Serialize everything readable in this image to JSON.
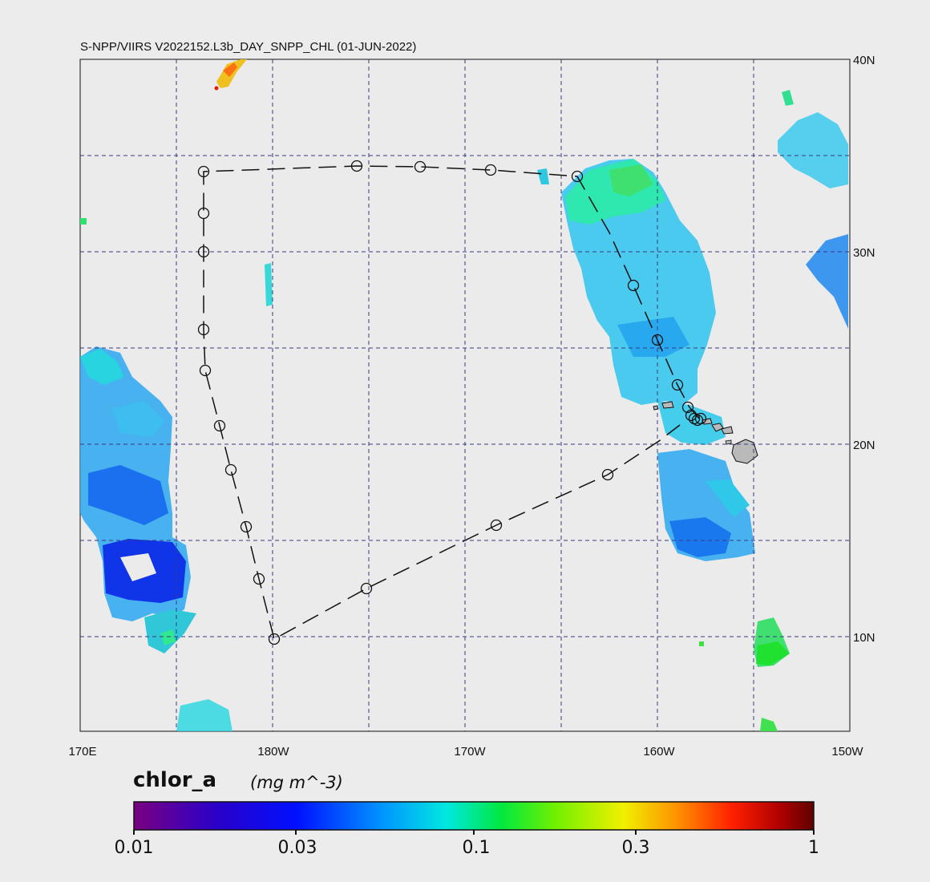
{
  "title": "S-NPP/VIIRS V2022152.L3b_DAY_SNPP_CHL (01-JUN-2022)",
  "map": {
    "lon_labels": [
      "170E",
      "180W",
      "170W",
      "160W",
      "150W"
    ],
    "lat_labels": [
      "40N",
      "30N",
      "20N",
      "10N"
    ],
    "background_color": "#ebebeb",
    "grid_color": "#3a3a80",
    "track_style": "dashed black line with circle markers",
    "land_color": "#b9b9b9"
  },
  "colorbar": {
    "variable": "chlor_a",
    "units": "(mg m^-3)",
    "tick_labels": [
      "0.01",
      "0.03",
      "0.1",
      "0.3",
      "1"
    ],
    "scale": "log",
    "range": [
      0.01,
      1
    ],
    "colors": [
      "#7a0080",
      "#2b00c8",
      "#0010ff",
      "#0090ff",
      "#00e8e0",
      "#00e840",
      "#70f000",
      "#f0f000",
      "#ff9000",
      "#ff2000",
      "#b00000",
      "#600000"
    ]
  }
}
